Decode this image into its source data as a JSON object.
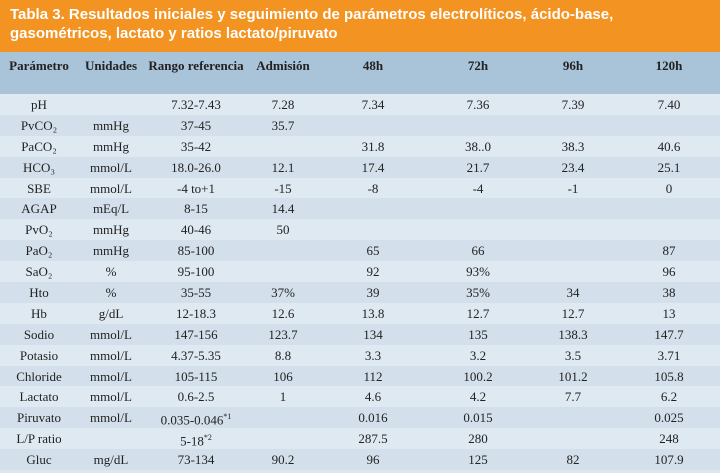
{
  "header": {
    "title": "Tabla 3. Resultados iniciales y seguimiento de parámetros electrolíticos, ácido-base, gasométricos, lactato y ratios lactato/piruvato"
  },
  "table": {
    "columns": [
      "Parámetro",
      "Unidades",
      "Rango referencia",
      "Admisión",
      "48h",
      "72h",
      "96h",
      "120h"
    ],
    "rows": [
      [
        "pH",
        null,
        "7.32-7.43",
        "7.28",
        "7.34",
        "7.36",
        "7.39",
        "7.40"
      ],
      [
        "PvCO₂",
        "mmHg",
        "37-45",
        "35.7",
        null,
        null,
        null,
        null
      ],
      [
        "PaCO₂",
        "mmHg",
        "35-42",
        null,
        "31.8",
        "38..0",
        "38.3",
        "40.6"
      ],
      [
        "HCO₃",
        "mmol/L",
        "18.0-26.0",
        "12.1",
        "17.4",
        "21.7",
        "23.4",
        "25.1"
      ],
      [
        "SBE",
        "mmol/L",
        "-4 to+1",
        "-15",
        "-8",
        "-4",
        "-1",
        "0"
      ],
      [
        "AGAP",
        "mEq/L",
        "8-15",
        "14.4",
        null,
        null,
        null,
        null
      ],
      [
        "PvO₂",
        "mmHg",
        "40-46",
        "50",
        null,
        null,
        null,
        null
      ],
      [
        "PaO₂",
        "mmHg",
        "85-100",
        null,
        "65",
        "66",
        null,
        "87"
      ],
      [
        "SaO₂",
        "%",
        "95-100",
        null,
        "92",
        "93%",
        null,
        "96"
      ],
      [
        "Hto",
        "%",
        "35-55",
        "37%",
        "39",
        "35%",
        "34",
        "38"
      ],
      [
        "Hb",
        "g/dL",
        "12-18.3",
        "12.6",
        "13.8",
        "12.7",
        "12.7",
        "13"
      ],
      [
        "Sodio",
        "mmol/L",
        "147-156",
        "123.7",
        "134",
        "135",
        "138.3",
        "147.7"
      ],
      [
        "Potasio",
        "mmol/L",
        "4.37-5.35",
        "8.8",
        "3.3",
        "3.2",
        "3.5",
        "3.71"
      ],
      [
        "Chloride",
        "mmol/L",
        "105-115",
        "106",
        "112",
        "100.2",
        "101.2",
        "105.8"
      ],
      [
        "Lactato",
        "mmol/L",
        "0.6-2.5",
        "1",
        "4.6",
        "4.2",
        "7.7",
        "6.2"
      ],
      [
        "Piruvato",
        "mmol/L",
        {
          "text": "0.035-0.046",
          "sup": "*1"
        },
        null,
        "0.016",
        "0.015",
        null,
        "0.025"
      ],
      [
        "L/P ratio",
        null,
        {
          "text": "5-18",
          "sup": "*2"
        },
        null,
        "287.5",
        "280",
        null,
        "248"
      ],
      [
        "Gluc",
        "mg/dL",
        "73-134",
        "90.2",
        "96",
        "125",
        "82",
        "107.9"
      ]
    ]
  }
}
